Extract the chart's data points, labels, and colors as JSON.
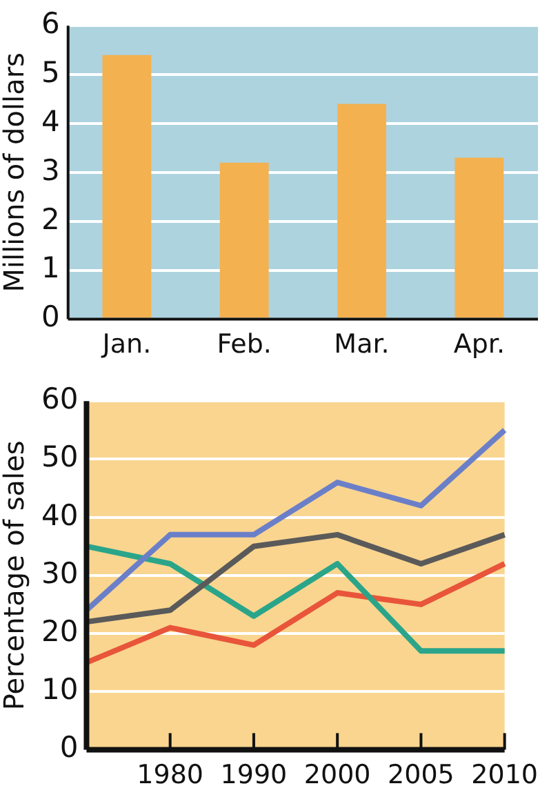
{
  "chart_data": [
    {
      "type": "bar",
      "ylabel": "Millions of dollars",
      "categories": [
        "Jan.",
        "Feb.",
        "Mar.",
        "Apr."
      ],
      "values": [
        5.4,
        3.2,
        4.4,
        3.3
      ],
      "color": "#f4b150",
      "ylim": [
        0,
        6
      ],
      "yticks": [
        0,
        1,
        2,
        3,
        4,
        5,
        6
      ],
      "grid": "y",
      "legend": false
    },
    {
      "type": "line",
      "ylabel": "Percentage of sales",
      "categories": [
        null,
        "1980",
        "1990",
        "2000",
        "2005",
        "2010"
      ],
      "series": [
        {
          "color": "#6b7fc9",
          "values": [
            24,
            37,
            37,
            46,
            42,
            55
          ]
        },
        {
          "color": "#5a5a5a",
          "values": [
            22,
            24,
            35,
            37,
            32,
            37
          ]
        },
        {
          "color": "#2aa58a",
          "values": [
            35,
            32,
            23,
            32,
            17,
            17
          ]
        },
        {
          "color": "#e8553a",
          "values": [
            15,
            21,
            18,
            27,
            25,
            32
          ]
        }
      ],
      "ylim": [
        0,
        60
      ],
      "yticks": [
        0,
        10,
        20,
        30,
        40,
        50,
        60
      ],
      "grid": "y",
      "legend": false,
      "marker": "none",
      "line_style": "solid"
    }
  ]
}
